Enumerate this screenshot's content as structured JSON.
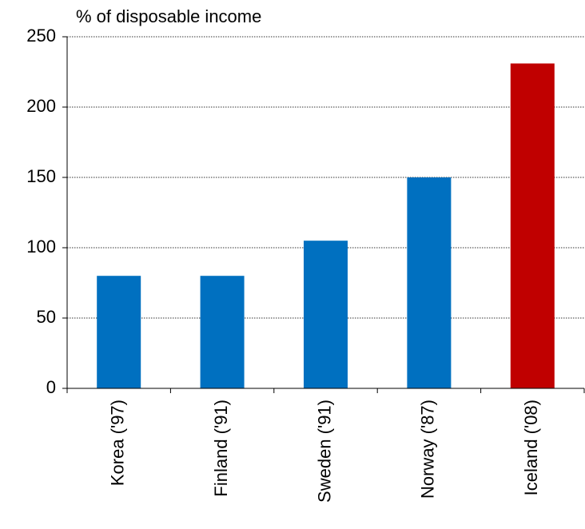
{
  "chart_data": {
    "type": "bar",
    "title": "% of disposable income",
    "categories": [
      "Korea ('97)",
      "Finland ('91)",
      "Sweden ('91)",
      "Norway ('87)",
      "Iceland ('08)"
    ],
    "values": [
      80,
      80,
      105,
      150,
      231
    ],
    "colors": [
      "#0070c0",
      "#0070c0",
      "#0070c0",
      "#0070c0",
      "#c00000"
    ],
    "ylim": [
      0,
      250
    ],
    "yticks": [
      0,
      50,
      100,
      150,
      200,
      250
    ],
    "grid": true
  }
}
